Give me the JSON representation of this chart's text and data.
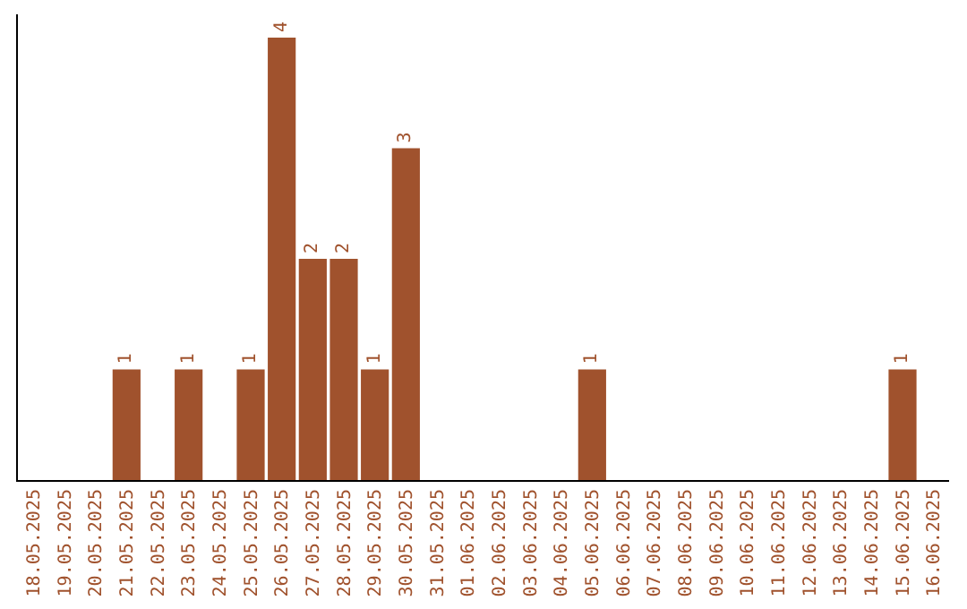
{
  "chart_data": {
    "type": "bar",
    "categories": [
      "18.05.2025",
      "19.05.2025",
      "20.05.2025",
      "21.05.2025",
      "22.05.2025",
      "23.05.2025",
      "24.05.2025",
      "25.05.2025",
      "26.05.2025",
      "27.05.2025",
      "28.05.2025",
      "29.05.2025",
      "30.05.2025",
      "31.05.2025",
      "01.06.2025",
      "02.06.2025",
      "03.06.2025",
      "04.06.2025",
      "05.06.2025",
      "06.06.2025",
      "07.06.2025",
      "08.06.2025",
      "09.06.2025",
      "10.06.2025",
      "11.06.2025",
      "12.06.2025",
      "13.06.2025",
      "14.06.2025",
      "15.06.2025",
      "16.06.2025"
    ],
    "values": [
      0,
      0,
      0,
      1,
      0,
      1,
      0,
      1,
      4,
      2,
      2,
      1,
      3,
      0,
      0,
      0,
      0,
      0,
      1,
      0,
      0,
      0,
      0,
      0,
      0,
      0,
      0,
      0,
      1,
      0
    ],
    "value_labels": [
      null,
      null,
      null,
      "1",
      null,
      "1",
      null,
      "1",
      "4",
      "2",
      "2",
      "1",
      "3",
      null,
      null,
      null,
      null,
      null,
      "1",
      null,
      null,
      null,
      null,
      null,
      null,
      null,
      null,
      null,
      "1",
      null
    ],
    "color": "#a0522d",
    "tick_labels": "x",
    "grid": false,
    "legend": false
  }
}
